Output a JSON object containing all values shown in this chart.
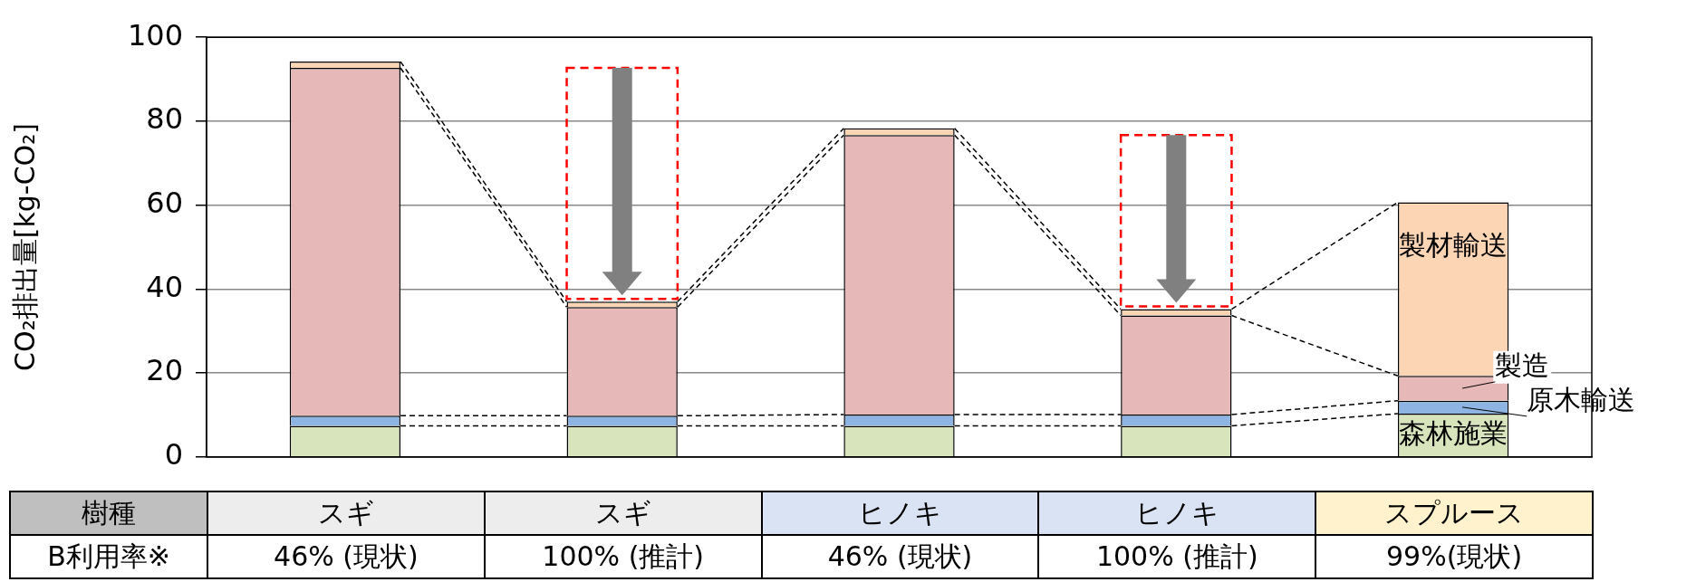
{
  "chart_data": {
    "type": "bar",
    "stacked": true,
    "ylabel": "CO₂排出量[kg-CO₂]",
    "categories": [
      "スギ",
      "スギ",
      "ヒノキ",
      "ヒノキ",
      "スプルース"
    ],
    "series": [
      {
        "name": "森林施業",
        "color": "#d8e4bc",
        "values": [
          7.4,
          7.4,
          7.4,
          7.4,
          10.3
        ]
      },
      {
        "name": "原木輸送",
        "color": "#8db4e2",
        "values": [
          2.4,
          2.4,
          2.7,
          2.7,
          3.1
        ]
      },
      {
        "name": "製造",
        "color": "#e6b8b7",
        "values": [
          82.9,
          25.9,
          66.6,
          23.6,
          5.9
        ]
      },
      {
        "name": "製材輸送",
        "color": "#fcd5b4",
        "values": [
          1.5,
          1.3,
          1.6,
          1.5,
          41.4
        ]
      }
    ],
    "ylim": [
      0,
      100
    ],
    "yticks": [
      0,
      20,
      40,
      60,
      80,
      100
    ],
    "grid": "y",
    "annotations": [
      "樹種",
      "B利用率※",
      "46% (現状)",
      "100% (推計)",
      "46% (現状)",
      "100% (推計)",
      "99%(現状)"
    ]
  }
}
